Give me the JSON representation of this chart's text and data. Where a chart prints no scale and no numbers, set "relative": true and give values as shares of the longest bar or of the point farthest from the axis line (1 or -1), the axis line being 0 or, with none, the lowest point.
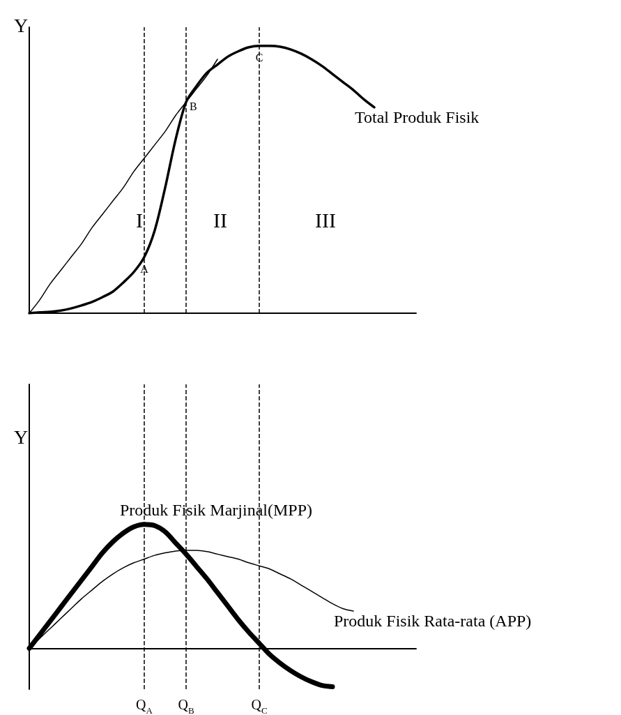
{
  "chart_data": [
    {
      "type": "line",
      "relative": true,
      "ylabel": "Y",
      "tick_labels": false,
      "marker": "none",
      "categories": [
        null,
        null,
        null,
        null,
        null,
        null,
        null,
        null,
        null,
        null,
        null,
        "Q$_{A}$",
        null,
        null,
        null,
        "Q$_{B}$",
        null,
        null,
        null,
        null,
        null,
        null,
        "Q$_{C}$",
        null,
        null,
        null,
        null,
        null,
        null,
        null,
        null,
        null,
        null,
        null,
        null,
        null,
        null,
        null
      ],
      "series": [
        {
          "name": "Total Produk Fisik",
          "color": "#000000",
          "values": [
            0,
            0.003,
            0.005,
            0.01,
            0.018,
            0.029,
            0.042,
            0.06,
            0.081,
            0.115,
            0.154,
            0.21,
            0.31,
            0.47,
            0.65,
            0.79,
            0.85,
            0.9,
            0.93,
            0.96,
            0.98,
            0.995,
            1.0,
            1.0,
            0.997,
            0.987,
            0.971,
            0.95,
            0.925,
            0.895,
            0.865,
            0.835,
            0.8,
            0.77,
            null,
            null,
            null,
            null
          ]
        },
        {
          "color": "#000000",
          "values": [
            0,
            0.05,
            0.11,
            0.16,
            0.21,
            0.26,
            0.32,
            0.37,
            0.42,
            0.47,
            0.53,
            0.58,
            0.63,
            0.68,
            0.74,
            0.79,
            0.84,
            0.89,
            0.95,
            null,
            null,
            null,
            null,
            null,
            null,
            null,
            null,
            null,
            null,
            null,
            null,
            null,
            null,
            null,
            null,
            null,
            null,
            null
          ]
        }
      ],
      "ref_lines": [
        {
          "axis": "x",
          "value": "Q$_{A}$",
          "color": "#000000",
          "line_style": "dashed"
        },
        {
          "axis": "x",
          "value": "Q$_{B}$",
          "color": "#000000",
          "line_style": "dashed"
        },
        {
          "axis": "x",
          "value": "Q$_{C}$",
          "color": "#000000",
          "line_style": "dashed"
        }
      ],
      "annotations": [
        {
          "text": "A",
          "x": "Q$_{A}$",
          "y": 0.21
        },
        {
          "text": "B",
          "x": "Q$_{B}$",
          "y": 0.79
        },
        {
          "text": "C",
          "x": "Q$_{C}$",
          "y": 1.0
        },
        "I",
        "II",
        "III"
      ]
    },
    {
      "type": "line",
      "relative": true,
      "ylabel": "Y",
      "marker": "none",
      "categories": [
        null,
        null,
        null,
        null,
        null,
        null,
        null,
        null,
        null,
        null,
        null,
        "Q$_{A}$",
        null,
        null,
        null,
        "Q$_{B}$",
        null,
        null,
        null,
        null,
        null,
        null,
        "Q$_{C}$",
        null,
        null,
        null,
        null,
        null,
        null,
        null,
        null,
        null,
        null,
        null,
        null,
        null,
        null,
        null
      ],
      "series": [
        {
          "name": "Produk Fisik Marjinal(MPP)",
          "color": "#000000",
          "values": [
            0,
            0.11,
            0.22,
            0.33,
            0.44,
            0.55,
            0.66,
            0.77,
            0.86,
            0.93,
            0.98,
            1.0,
            0.99,
            0.94,
            0.85,
            0.76,
            0.66,
            0.56,
            0.45,
            0.34,
            0.23,
            0.13,
            0.04,
            -0.05,
            -0.12,
            -0.18,
            -0.23,
            -0.27,
            -0.3,
            -0.31,
            null,
            null,
            null,
            null,
            null,
            null,
            null,
            null
          ]
        },
        {
          "name": "Produk Fisik Rata-rata (APP)",
          "color": "#000000",
          "values": [
            0,
            0.08,
            0.16,
            0.24,
            0.32,
            0.4,
            0.47,
            0.54,
            0.6,
            0.65,
            0.69,
            0.72,
            0.75,
            0.77,
            0.785,
            0.79,
            0.79,
            0.78,
            0.76,
            0.74,
            0.72,
            0.69,
            0.665,
            0.64,
            0.6,
            0.56,
            0.51,
            0.46,
            0.41,
            0.36,
            0.32,
            0.3,
            null,
            null,
            null,
            null,
            null,
            null
          ]
        }
      ],
      "ref_lines": [
        {
          "axis": "x",
          "value": "Q$_{A}$",
          "color": "#000000",
          "line_style": "dashed"
        },
        {
          "axis": "x",
          "value": "Q$_{B}$",
          "color": "#000000",
          "line_style": "dashed"
        },
        {
          "axis": "x",
          "value": "Q$_{C}$",
          "color": "#000000",
          "line_style": "dashed"
        }
      ]
    }
  ]
}
